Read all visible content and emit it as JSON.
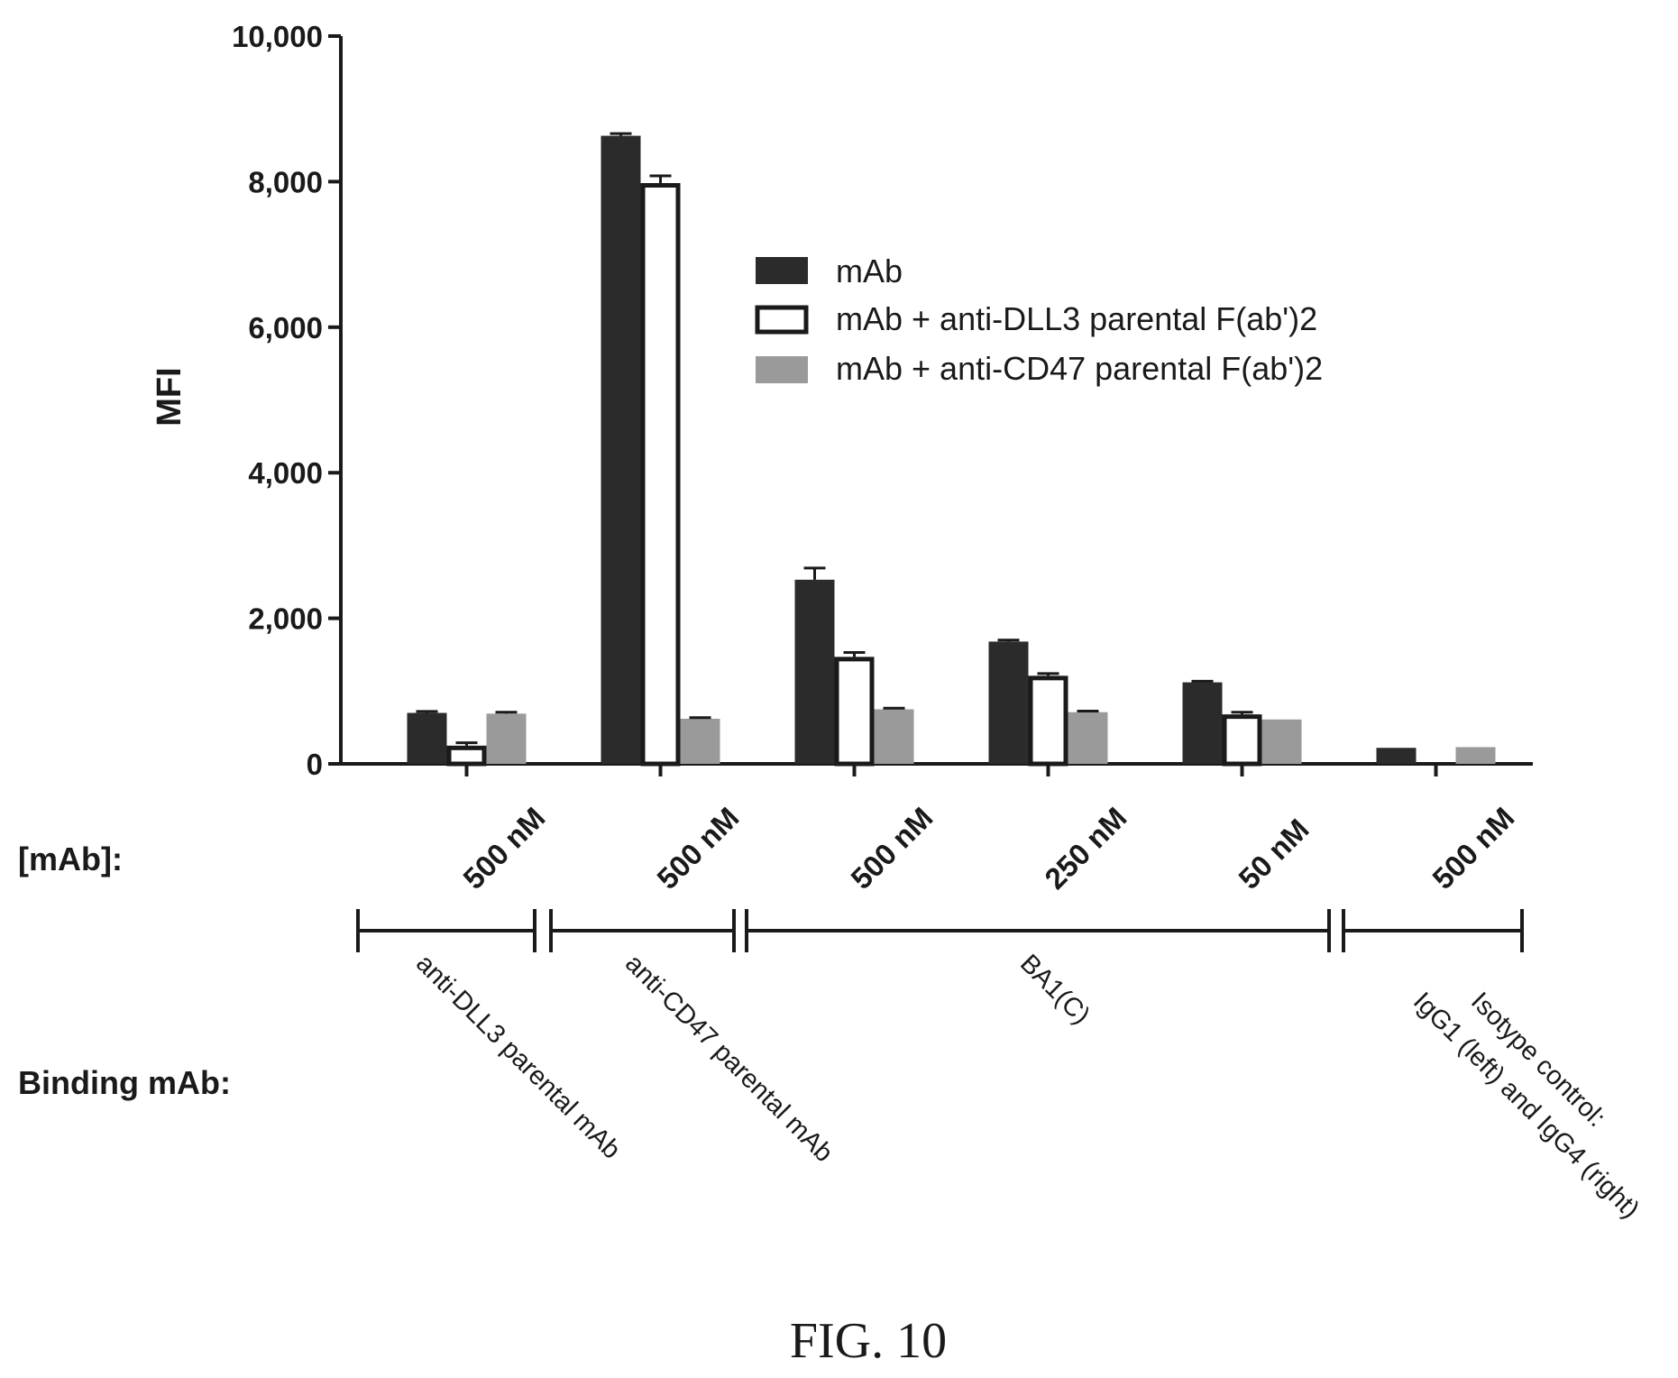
{
  "chart_data": {
    "type": "bar",
    "ylabel": "MFI",
    "ylim": [
      0,
      10000
    ],
    "yticks": [
      0,
      2000,
      4000,
      6000,
      8000,
      10000
    ],
    "ytick_labels": [
      "0",
      "2,000",
      "4,000",
      "6,000",
      "8,000",
      "10,000"
    ],
    "categories": [
      "500 nM",
      "500 nM",
      "500 nM",
      "250 nM",
      "50 nM",
      "500 nM"
    ],
    "series": [
      {
        "name": "mAb",
        "color": "#2b2b2b",
        "pattern": "solid-dark",
        "values": [
          700,
          8630,
          2530,
          1680,
          1120,
          220
        ],
        "errors": [
          20,
          30,
          160,
          20,
          15,
          0
        ]
      },
      {
        "name": "mAb + anti-DLL3 parental F(ab')2",
        "color": "#ffffff",
        "pattern": "open-black-outline",
        "values": [
          250,
          7980,
          1470,
          1210,
          680,
          null
        ],
        "errors": [
          40,
          100,
          60,
          30,
          30,
          0
        ]
      },
      {
        "name": "mAb + anti-CD47 parental F(ab')2",
        "color": "#9a9a9a",
        "pattern": "solid-gray",
        "values": [
          690,
          620,
          750,
          710,
          610,
          230
        ],
        "errors": [
          20,
          15,
          15,
          15,
          0,
          0
        ]
      }
    ],
    "legend_position": "upper-right",
    "grid": false
  },
  "row_labels": {
    "concentration": "[mAb]:",
    "binding": "Binding mAb:"
  },
  "binding_groups": [
    {
      "label": "anti-DLL3 parental mAb"
    },
    {
      "label": "anti-CD47 parental mAb"
    },
    {
      "label": "BA1(C)"
    },
    {
      "label_line1": "Isotype control:",
      "label_line2": "IgG1 (left) and IgG4 (right)"
    }
  ],
  "caption": "FIG. 10"
}
